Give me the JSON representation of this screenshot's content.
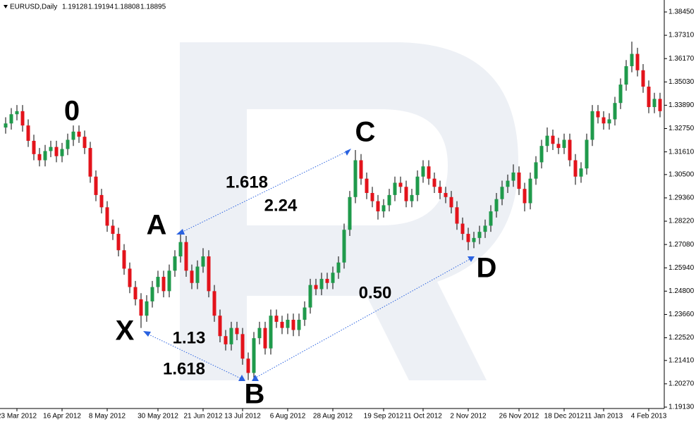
{
  "chart_data": {
    "type": "candlestick",
    "title": "EURUSD,Daily",
    "header_values": [
      "1.19128",
      "1.19194",
      "1.18808",
      "1.18895"
    ],
    "up_color": "#1f9a4b",
    "down_color": "#e3131b",
    "wick_color": "#000000",
    "ylim": [
      1.1913,
      1.3845
    ],
    "yticks": [
      {
        "value": 1.3845,
        "label": "1.38450"
      },
      {
        "value": 1.3731,
        "label": "1.37310"
      },
      {
        "value": 1.3617,
        "label": "1.36170"
      },
      {
        "value": 1.3503,
        "label": "1.35030"
      },
      {
        "value": 1.3389,
        "label": "1.33890"
      },
      {
        "value": 1.3275,
        "label": "1.32750"
      },
      {
        "value": 1.3161,
        "label": "1.31610"
      },
      {
        "value": 1.305,
        "label": "1.30500"
      },
      {
        "value": 1.2936,
        "label": "1.29360"
      },
      {
        "value": 1.2822,
        "label": "1.28220"
      },
      {
        "value": 1.2708,
        "label": "1.27080"
      },
      {
        "value": 1.2594,
        "label": "1.25940"
      },
      {
        "value": 1.248,
        "label": "1.24800"
      },
      {
        "value": 1.2366,
        "label": "1.23660"
      },
      {
        "value": 1.2252,
        "label": "1.22520"
      },
      {
        "value": 1.2141,
        "label": "1.21410"
      },
      {
        "value": 1.2027,
        "label": "1.20270"
      },
      {
        "value": 1.1913,
        "label": "1.19130"
      }
    ],
    "categories": [
      null,
      null,
      "23 Mar 2012",
      null,
      null,
      null,
      null,
      null,
      null,
      null,
      "16 Apr 2012",
      null,
      null,
      null,
      null,
      null,
      null,
      null,
      "8 May 2012",
      null,
      null,
      null,
      null,
      null,
      null,
      null,
      null,
      "30 May 2012",
      null,
      null,
      null,
      null,
      null,
      null,
      null,
      "21 Jun 2012",
      null,
      null,
      null,
      null,
      null,
      null,
      "13 Jul 2012",
      null,
      null,
      null,
      null,
      null,
      null,
      null,
      "6 Aug 2012",
      null,
      null,
      null,
      null,
      null,
      null,
      null,
      "28 Aug 2012",
      null,
      null,
      null,
      null,
      null,
      null,
      null,
      null,
      "19 Sep 2012",
      null,
      null,
      null,
      null,
      null,
      null,
      "11 Oct 2012",
      null,
      null,
      null,
      null,
      null,
      null,
      null,
      "2 Nov 2012",
      null,
      null,
      null,
      null,
      null,
      null,
      null,
      null,
      "26 Nov 2012",
      null,
      null,
      null,
      null,
      null,
      null,
      null,
      "18 Dec 2012",
      null,
      null,
      null,
      null,
      null,
      null,
      "11 Jan 2013",
      null,
      null,
      null,
      null,
      null,
      null,
      null,
      "4 Feb 2013",
      null,
      null
    ],
    "ohlc": [
      [
        1.328,
        1.333,
        1.325,
        1.33
      ],
      [
        1.33,
        1.3375,
        1.327,
        1.3345
      ],
      [
        1.3345,
        1.339,
        1.3315,
        1.336
      ],
      [
        1.336,
        1.339,
        1.326,
        1.329
      ],
      [
        1.329,
        1.332,
        1.3185,
        1.3215
      ],
      [
        1.3215,
        1.3245,
        1.312,
        1.315
      ],
      [
        1.315,
        1.318,
        1.309,
        1.312
      ],
      [
        1.312,
        1.3195,
        1.309,
        1.3165
      ],
      [
        1.3165,
        1.3215,
        1.3135,
        1.3185
      ],
      [
        1.3185,
        1.3215,
        1.311,
        1.314
      ],
      [
        1.314,
        1.3205,
        1.311,
        1.3175
      ],
      [
        1.3175,
        1.325,
        1.3145,
        1.322
      ],
      [
        1.322,
        1.329,
        1.319,
        1.326
      ],
      [
        1.326,
        1.329,
        1.3205,
        1.3235
      ],
      [
        1.3235,
        1.3265,
        1.315,
        1.318
      ],
      [
        1.318,
        1.321,
        1.301,
        1.304
      ],
      [
        1.304,
        1.307,
        1.292,
        1.295
      ],
      [
        1.295,
        1.298,
        1.286,
        1.289
      ],
      [
        1.289,
        1.292,
        1.277,
        1.28
      ],
      [
        1.28,
        1.283,
        1.273,
        1.276
      ],
      [
        1.276,
        1.279,
        1.265,
        1.268
      ],
      [
        1.268,
        1.271,
        1.256,
        1.259
      ],
      [
        1.259,
        1.262,
        1.247,
        1.25
      ],
      [
        1.25,
        1.253,
        1.241,
        1.244
      ],
      [
        1.244,
        1.247,
        1.23,
        1.236
      ],
      [
        1.236,
        1.246,
        1.233,
        1.243
      ],
      [
        1.243,
        1.253,
        1.24,
        1.25
      ],
      [
        1.25,
        1.258,
        1.247,
        1.255
      ],
      [
        1.255,
        1.258,
        1.245,
        1.248
      ],
      [
        1.248,
        1.261,
        1.245,
        1.258
      ],
      [
        1.258,
        1.268,
        1.255,
        1.265
      ],
      [
        1.265,
        1.276,
        1.262,
        1.272
      ],
      [
        1.272,
        1.275,
        1.255,
        1.258
      ],
      [
        1.258,
        1.261,
        1.249,
        1.252
      ],
      [
        1.252,
        1.263,
        1.249,
        1.26
      ],
      [
        1.26,
        1.269,
        1.257,
        1.265
      ],
      [
        1.265,
        1.268,
        1.245,
        1.248
      ],
      [
        1.248,
        1.251,
        1.233,
        1.236
      ],
      [
        1.236,
        1.239,
        1.223,
        1.226
      ],
      [
        1.226,
        1.229,
        1.219,
        1.222
      ],
      [
        1.222,
        1.233,
        1.219,
        1.23
      ],
      [
        1.23,
        1.233,
        1.224,
        1.227
      ],
      [
        1.227,
        1.23,
        1.212,
        1.215
      ],
      [
        1.215,
        1.218,
        1.2045,
        1.208
      ],
      [
        1.208,
        1.228,
        1.205,
        1.225
      ],
      [
        1.225,
        1.233,
        1.222,
        1.23
      ],
      [
        1.23,
        1.233,
        1.217,
        1.22
      ],
      [
        1.22,
        1.239,
        1.217,
        1.236
      ],
      [
        1.236,
        1.239,
        1.23,
        1.233
      ],
      [
        1.233,
        1.236,
        1.227,
        1.23
      ],
      [
        1.23,
        1.237,
        1.227,
        1.234
      ],
      [
        1.234,
        1.237,
        1.226,
        1.229
      ],
      [
        1.229,
        1.237,
        1.226,
        1.234
      ],
      [
        1.234,
        1.243,
        1.231,
        1.24
      ],
      [
        1.24,
        1.254,
        1.237,
        1.251
      ],
      [
        1.251,
        1.254,
        1.246,
        1.249
      ],
      [
        1.249,
        1.257,
        1.246,
        1.254
      ],
      [
        1.254,
        1.257,
        1.249,
        1.252
      ],
      [
        1.252,
        1.26,
        1.249,
        1.257
      ],
      [
        1.257,
        1.265,
        1.254,
        1.262
      ],
      [
        1.262,
        1.281,
        1.259,
        1.278
      ],
      [
        1.278,
        1.297,
        1.275,
        1.294
      ],
      [
        1.294,
        1.317,
        1.291,
        1.312
      ],
      [
        1.312,
        1.315,
        1.3,
        1.303
      ],
      [
        1.303,
        1.306,
        1.293,
        1.296
      ],
      [
        1.296,
        1.299,
        1.289,
        1.292
      ],
      [
        1.292,
        1.295,
        1.283,
        1.287
      ],
      [
        1.287,
        1.293,
        1.284,
        1.29
      ],
      [
        1.29,
        1.298,
        1.287,
        1.295
      ],
      [
        1.295,
        1.304,
        1.292,
        1.301
      ],
      [
        1.301,
        1.304,
        1.296,
        1.299
      ],
      [
        1.299,
        1.302,
        1.289,
        1.292
      ],
      [
        1.292,
        1.298,
        1.289,
        1.295
      ],
      [
        1.295,
        1.307,
        1.292,
        1.304
      ],
      [
        1.304,
        1.312,
        1.301,
        1.309
      ],
      [
        1.309,
        1.312,
        1.3,
        1.303
      ],
      [
        1.303,
        1.306,
        1.296,
        1.299
      ],
      [
        1.299,
        1.302,
        1.293,
        1.296
      ],
      [
        1.296,
        1.299,
        1.291,
        1.294
      ],
      [
        1.294,
        1.297,
        1.286,
        1.289
      ],
      [
        1.289,
        1.292,
        1.278,
        1.281
      ],
      [
        1.281,
        1.284,
        1.273,
        1.276
      ],
      [
        1.276,
        1.279,
        1.268,
        1.272
      ],
      [
        1.272,
        1.277,
        1.269,
        1.274
      ],
      [
        1.274,
        1.28,
        1.271,
        1.277
      ],
      [
        1.277,
        1.283,
        1.274,
        1.28
      ],
      [
        1.28,
        1.29,
        1.277,
        1.287
      ],
      [
        1.287,
        1.296,
        1.284,
        1.293
      ],
      [
        1.293,
        1.302,
        1.29,
        1.299
      ],
      [
        1.299,
        1.305,
        1.296,
        1.302
      ],
      [
        1.302,
        1.31,
        1.299,
        1.306
      ],
      [
        1.306,
        1.309,
        1.295,
        1.298
      ],
      [
        1.298,
        1.301,
        1.287,
        1.291
      ],
      [
        1.291,
        1.306,
        1.288,
        1.303
      ],
      [
        1.303,
        1.314,
        1.3,
        1.311
      ],
      [
        1.311,
        1.322,
        1.308,
        1.319
      ],
      [
        1.319,
        1.328,
        1.316,
        1.324
      ],
      [
        1.324,
        1.327,
        1.317,
        1.32
      ],
      [
        1.32,
        1.323,
        1.315,
        1.318
      ],
      [
        1.318,
        1.325,
        1.315,
        1.322
      ],
      [
        1.322,
        1.325,
        1.309,
        1.312
      ],
      [
        1.312,
        1.315,
        1.3,
        1.304
      ],
      [
        1.304,
        1.311,
        1.301,
        1.308
      ],
      [
        1.308,
        1.325,
        1.305,
        1.322
      ],
      [
        1.322,
        1.339,
        1.319,
        1.336
      ],
      [
        1.336,
        1.339,
        1.33,
        1.333
      ],
      [
        1.333,
        1.336,
        1.327,
        1.33
      ],
      [
        1.33,
        1.335,
        1.327,
        1.332
      ],
      [
        1.332,
        1.343,
        1.329,
        1.34
      ],
      [
        1.34,
        1.352,
        1.337,
        1.349
      ],
      [
        1.349,
        1.361,
        1.346,
        1.358
      ],
      [
        1.358,
        1.37,
        1.355,
        1.364
      ],
      [
        1.364,
        1.367,
        1.353,
        1.356
      ],
      [
        1.356,
        1.359,
        1.345,
        1.348
      ],
      [
        1.348,
        1.351,
        1.335,
        1.338
      ],
      [
        1.338,
        1.345,
        1.335,
        1.342
      ],
      [
        1.342,
        1.345,
        1.333,
        1.336
      ]
    ],
    "annotations": [
      "0",
      "A",
      "X",
      "B",
      "C",
      "D",
      "1.618",
      "2.24",
      "1.13",
      "1.618",
      "0.50"
    ]
  }
}
